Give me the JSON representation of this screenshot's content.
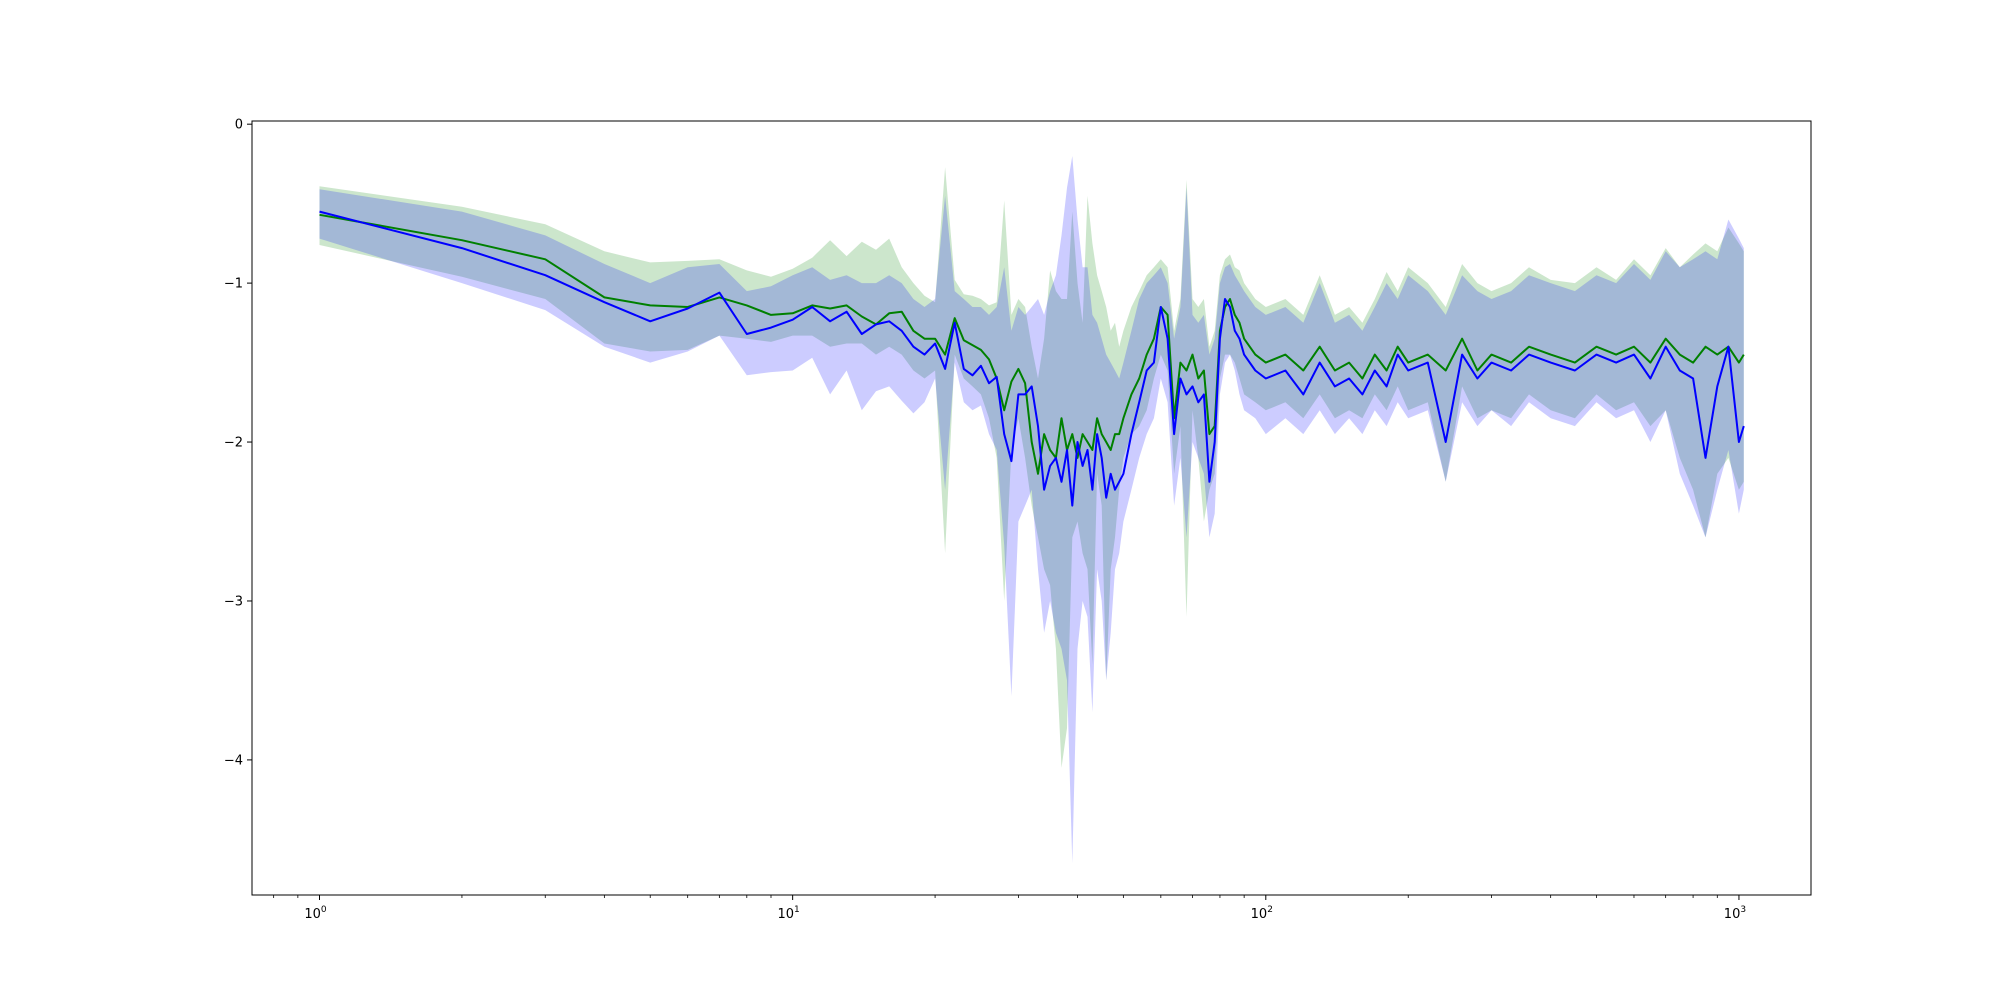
{
  "chart_data": {
    "type": "line",
    "title": "",
    "xlabel": "",
    "ylabel": "",
    "xscale": "log",
    "xlim": [
      0.72,
      1420
    ],
    "ylim": [
      -4.85,
      0.02
    ],
    "grid": false,
    "legend": "none",
    "x_ticks": [
      {
        "base": "10",
        "exp": "0",
        "value": 1
      },
      {
        "base": "10",
        "exp": "1",
        "value": 10
      },
      {
        "base": "10",
        "exp": "2",
        "value": 100
      },
      {
        "base": "10",
        "exp": "3",
        "value": 1000
      }
    ],
    "y_ticks": [
      {
        "label": "0",
        "value": 0
      },
      {
        "label": "−1",
        "value": -1
      },
      {
        "label": "−2",
        "value": -2
      },
      {
        "label": "−3",
        "value": -3
      },
      {
        "label": "−4",
        "value": -4
      }
    ],
    "series": [
      {
        "color": "#008000",
        "band_color": "#008000",
        "band_opacity": 0.2,
        "x": [
          1,
          2,
          3,
          4,
          5,
          6,
          7,
          8,
          9,
          10,
          11,
          12,
          13,
          14,
          15,
          16,
          17,
          18,
          19,
          20,
          21,
          22,
          23,
          24,
          25,
          26,
          27,
          28,
          29,
          30,
          31,
          32,
          33,
          34,
          35,
          36,
          37,
          38,
          39,
          40,
          41,
          42,
          43,
          44,
          45,
          46,
          47,
          48,
          49,
          50,
          52,
          54,
          56,
          58,
          60,
          62,
          64,
          66,
          68,
          70,
          72,
          74,
          76,
          78,
          80,
          82,
          84,
          86,
          88,
          90,
          95,
          100,
          110,
          120,
          130,
          140,
          150,
          160,
          170,
          180,
          190,
          200,
          220,
          240,
          260,
          280,
          300,
          330,
          360,
          400,
          450,
          500,
          550,
          600,
          650,
          700,
          750,
          800,
          850,
          900,
          950,
          1000,
          1024
        ],
        "values": [
          -0.57,
          -0.73,
          -0.85,
          -1.09,
          -1.14,
          -1.15,
          -1.09,
          -1.14,
          -1.2,
          -1.19,
          -1.14,
          -1.16,
          -1.14,
          -1.21,
          -1.26,
          -1.19,
          -1.18,
          -1.3,
          -1.35,
          -1.35,
          -1.45,
          -1.22,
          -1.36,
          -1.39,
          -1.42,
          -1.48,
          -1.6,
          -1.8,
          -1.62,
          -1.54,
          -1.63,
          -2.0,
          -2.2,
          -1.95,
          -2.05,
          -2.1,
          -1.85,
          -2.05,
          -1.95,
          -2.1,
          -1.95,
          -2.0,
          -2.05,
          -1.85,
          -1.95,
          -2.0,
          -2.05,
          -1.95,
          -1.95,
          -1.85,
          -1.7,
          -1.6,
          -1.45,
          -1.35,
          -1.15,
          -1.2,
          -1.85,
          -1.5,
          -1.55,
          -1.45,
          -1.6,
          -1.55,
          -1.95,
          -1.9,
          -1.3,
          -1.15,
          -1.1,
          -1.2,
          -1.25,
          -1.35,
          -1.45,
          -1.5,
          -1.45,
          -1.55,
          -1.4,
          -1.55,
          -1.5,
          -1.6,
          -1.45,
          -1.55,
          -1.4,
          -1.5,
          -1.45,
          -1.55,
          -1.35,
          -1.55,
          -1.45,
          -1.5,
          -1.4,
          -1.45,
          -1.5,
          -1.4,
          -1.45,
          -1.4,
          -1.5,
          -1.35,
          -1.45,
          -1.5,
          -1.4,
          -1.45,
          -1.4,
          -1.5,
          -1.45
        ],
        "lower": [
          -0.76,
          -0.96,
          -1.1,
          -1.38,
          -1.43,
          -1.42,
          -1.33,
          -1.35,
          -1.37,
          -1.33,
          -1.33,
          -1.4,
          -1.38,
          -1.38,
          -1.45,
          -1.4,
          -1.45,
          -1.55,
          -1.6,
          -1.55,
          -2.7,
          -1.45,
          -1.6,
          -1.65,
          -1.7,
          -1.85,
          -2.1,
          -3.0,
          -2.05,
          -1.85,
          -2.1,
          -2.4,
          -2.6,
          -2.8,
          -2.9,
          -3.3,
          -4.05,
          -3.8,
          -2.6,
          -2.5,
          -2.7,
          -2.8,
          -3.4,
          -2.2,
          -2.4,
          -3.5,
          -2.8,
          -2.6,
          -2.3,
          -2.1,
          -1.95,
          -1.9,
          -1.8,
          -1.6,
          -1.45,
          -1.55,
          -2.2,
          -1.9,
          -3.1,
          -1.8,
          -2.1,
          -2.5,
          -2.3,
          -2.2,
          -1.6,
          -1.45,
          -1.45,
          -1.5,
          -1.6,
          -1.7,
          -1.75,
          -1.8,
          -1.75,
          -1.85,
          -1.7,
          -1.85,
          -1.8,
          -1.85,
          -1.7,
          -1.8,
          -1.65,
          -1.8,
          -1.75,
          -2.25,
          -1.65,
          -1.85,
          -1.8,
          -1.85,
          -1.7,
          -1.8,
          -1.85,
          -1.7,
          -1.8,
          -1.75,
          -1.9,
          -1.8,
          -2.1,
          -2.3,
          -2.6,
          -2.2,
          -2.1,
          -2.3,
          -2.25
        ],
        "upper": [
          -0.39,
          -0.52,
          -0.63,
          -0.8,
          -0.87,
          -0.86,
          -0.85,
          -0.92,
          -0.96,
          -0.91,
          -0.84,
          -0.73,
          -0.83,
          -0.74,
          -0.79,
          -0.72,
          -0.9,
          -1.0,
          -1.08,
          -1.12,
          -0.27,
          -0.98,
          -1.07,
          -1.08,
          -1.1,
          -1.14,
          -1.12,
          -0.48,
          -1.2,
          -1.1,
          -1.15,
          -1.4,
          -1.6,
          -1.35,
          -0.92,
          -1.05,
          -1.1,
          -1.1,
          -0.55,
          -1.0,
          -1.25,
          -0.45,
          -0.75,
          -0.95,
          -1.05,
          -1.15,
          -1.3,
          -1.25,
          -1.4,
          -1.3,
          -1.15,
          -1.05,
          -0.95,
          -0.9,
          -0.85,
          -0.9,
          -1.3,
          -1.1,
          -0.35,
          -1.1,
          -1.15,
          -1.1,
          -1.4,
          -1.3,
          -0.95,
          -0.85,
          -0.82,
          -0.9,
          -0.92,
          -1.0,
          -1.1,
          -1.15,
          -1.1,
          -1.2,
          -0.95,
          -1.2,
          -1.15,
          -1.25,
          -1.1,
          -0.93,
          -1.05,
          -0.9,
          -1.0,
          -1.15,
          -0.88,
          -1.0,
          -1.05,
          -1.0,
          -0.9,
          -0.98,
          -1.0,
          -0.9,
          -0.98,
          -0.85,
          -0.95,
          -0.78,
          -0.9,
          -0.82,
          -0.75,
          -0.8,
          -0.65,
          -0.75,
          -0.8
        ]
      },
      {
        "color": "#0000ff",
        "band_color": "#0000ff",
        "band_opacity": 0.2,
        "x": [
          1,
          2,
          3,
          4,
          5,
          6,
          7,
          8,
          9,
          10,
          11,
          12,
          13,
          14,
          15,
          16,
          17,
          18,
          19,
          20,
          21,
          22,
          23,
          24,
          25,
          26,
          27,
          28,
          29,
          30,
          31,
          32,
          33,
          34,
          35,
          36,
          37,
          38,
          39,
          40,
          41,
          42,
          43,
          44,
          45,
          46,
          47,
          48,
          49,
          50,
          52,
          54,
          56,
          58,
          60,
          62,
          64,
          66,
          68,
          70,
          72,
          74,
          76,
          78,
          80,
          82,
          84,
          86,
          88,
          90,
          95,
          100,
          110,
          120,
          130,
          140,
          150,
          160,
          170,
          180,
          190,
          200,
          220,
          240,
          260,
          280,
          300,
          330,
          360,
          400,
          450,
          500,
          550,
          600,
          650,
          700,
          750,
          800,
          850,
          900,
          950,
          1000,
          1024
        ],
        "values": [
          -0.55,
          -0.78,
          -0.95,
          -1.12,
          -1.24,
          -1.16,
          -1.06,
          -1.32,
          -1.28,
          -1.23,
          -1.15,
          -1.24,
          -1.18,
          -1.32,
          -1.26,
          -1.24,
          -1.3,
          -1.4,
          -1.45,
          -1.38,
          -1.54,
          -1.25,
          -1.54,
          -1.58,
          -1.52,
          -1.63,
          -1.59,
          -1.95,
          -2.12,
          -1.7,
          -1.7,
          -1.65,
          -1.9,
          -2.3,
          -2.15,
          -2.1,
          -2.25,
          -2.05,
          -2.4,
          -2.0,
          -2.15,
          -2.05,
          -2.3,
          -1.95,
          -2.1,
          -2.35,
          -2.2,
          -2.3,
          -2.25,
          -2.2,
          -1.95,
          -1.75,
          -1.55,
          -1.5,
          -1.15,
          -1.35,
          -1.95,
          -1.6,
          -1.7,
          -1.65,
          -1.75,
          -1.7,
          -2.25,
          -2.0,
          -1.35,
          -1.1,
          -1.15,
          -1.3,
          -1.35,
          -1.45,
          -1.55,
          -1.6,
          -1.55,
          -1.7,
          -1.5,
          -1.65,
          -1.6,
          -1.7,
          -1.55,
          -1.65,
          -1.45,
          -1.55,
          -1.5,
          -2.0,
          -1.45,
          -1.6,
          -1.5,
          -1.55,
          -1.45,
          -1.5,
          -1.55,
          -1.45,
          -1.5,
          -1.45,
          -1.6,
          -1.4,
          -1.55,
          -1.6,
          -2.1,
          -1.65,
          -1.4,
          -2.0,
          -1.9
        ],
        "lower": [
          -0.72,
          -1.0,
          -1.17,
          -1.4,
          -1.5,
          -1.43,
          -1.33,
          -1.58,
          -1.56,
          -1.55,
          -1.47,
          -1.7,
          -1.55,
          -1.8,
          -1.68,
          -1.65,
          -1.74,
          -1.82,
          -1.75,
          -1.6,
          -2.3,
          -1.5,
          -1.75,
          -1.8,
          -1.77,
          -1.95,
          -2.05,
          -2.65,
          -3.6,
          -2.5,
          -2.4,
          -2.3,
          -2.8,
          -3.2,
          -3.0,
          -3.2,
          -3.3,
          -3.5,
          -4.65,
          -3.3,
          -3.0,
          -3.1,
          -3.7,
          -2.8,
          -3.0,
          -3.5,
          -3.2,
          -2.8,
          -2.7,
          -2.5,
          -2.3,
          -2.1,
          -1.95,
          -1.85,
          -1.6,
          -1.75,
          -2.4,
          -2.1,
          -2.6,
          -2.0,
          -2.1,
          -2.2,
          -2.6,
          -2.45,
          -1.7,
          -1.5,
          -1.45,
          -1.55,
          -1.7,
          -1.8,
          -1.85,
          -1.95,
          -1.85,
          -1.95,
          -1.8,
          -1.95,
          -1.85,
          -1.95,
          -1.8,
          -1.9,
          -1.75,
          -1.85,
          -1.8,
          -2.25,
          -1.75,
          -1.9,
          -1.8,
          -1.9,
          -1.75,
          -1.85,
          -1.9,
          -1.75,
          -1.85,
          -1.8,
          -2.0,
          -1.8,
          -2.2,
          -2.4,
          -2.6,
          -2.3,
          -2.05,
          -2.45,
          -2.3
        ],
        "upper": [
          -0.41,
          -0.55,
          -0.7,
          -0.88,
          -1.0,
          -0.9,
          -0.88,
          -1.05,
          -1.02,
          -0.95,
          -0.9,
          -0.98,
          -0.95,
          -1.0,
          -1.0,
          -0.95,
          -1.0,
          -1.1,
          -1.15,
          -1.1,
          -0.45,
          -1.05,
          -1.1,
          -1.15,
          -1.15,
          -1.2,
          -1.15,
          -0.9,
          -1.3,
          -1.15,
          -1.2,
          -1.15,
          -1.1,
          -1.2,
          -1.05,
          -0.95,
          -0.7,
          -0.4,
          -0.2,
          -0.6,
          -0.9,
          -0.9,
          -1.2,
          -1.25,
          -1.35,
          -1.45,
          -1.5,
          -1.55,
          -1.6,
          -1.5,
          -1.3,
          -1.1,
          -1.0,
          -0.95,
          -0.9,
          -1.0,
          -1.35,
          -1.15,
          -0.4,
          -1.2,
          -1.25,
          -1.2,
          -1.45,
          -1.35,
          -1.0,
          -0.9,
          -0.88,
          -0.95,
          -1.0,
          -1.05,
          -1.15,
          -1.2,
          -1.15,
          -1.25,
          -1.0,
          -1.25,
          -1.2,
          -1.3,
          -1.15,
          -1.0,
          -1.1,
          -0.95,
          -1.05,
          -1.2,
          -0.95,
          -1.05,
          -1.1,
          -1.05,
          -0.95,
          -1.0,
          -1.05,
          -0.95,
          -1.0,
          -0.88,
          -0.98,
          -0.8,
          -0.9,
          -0.85,
          -0.8,
          -0.85,
          -0.6,
          -0.72,
          -0.78
        ]
      }
    ]
  }
}
